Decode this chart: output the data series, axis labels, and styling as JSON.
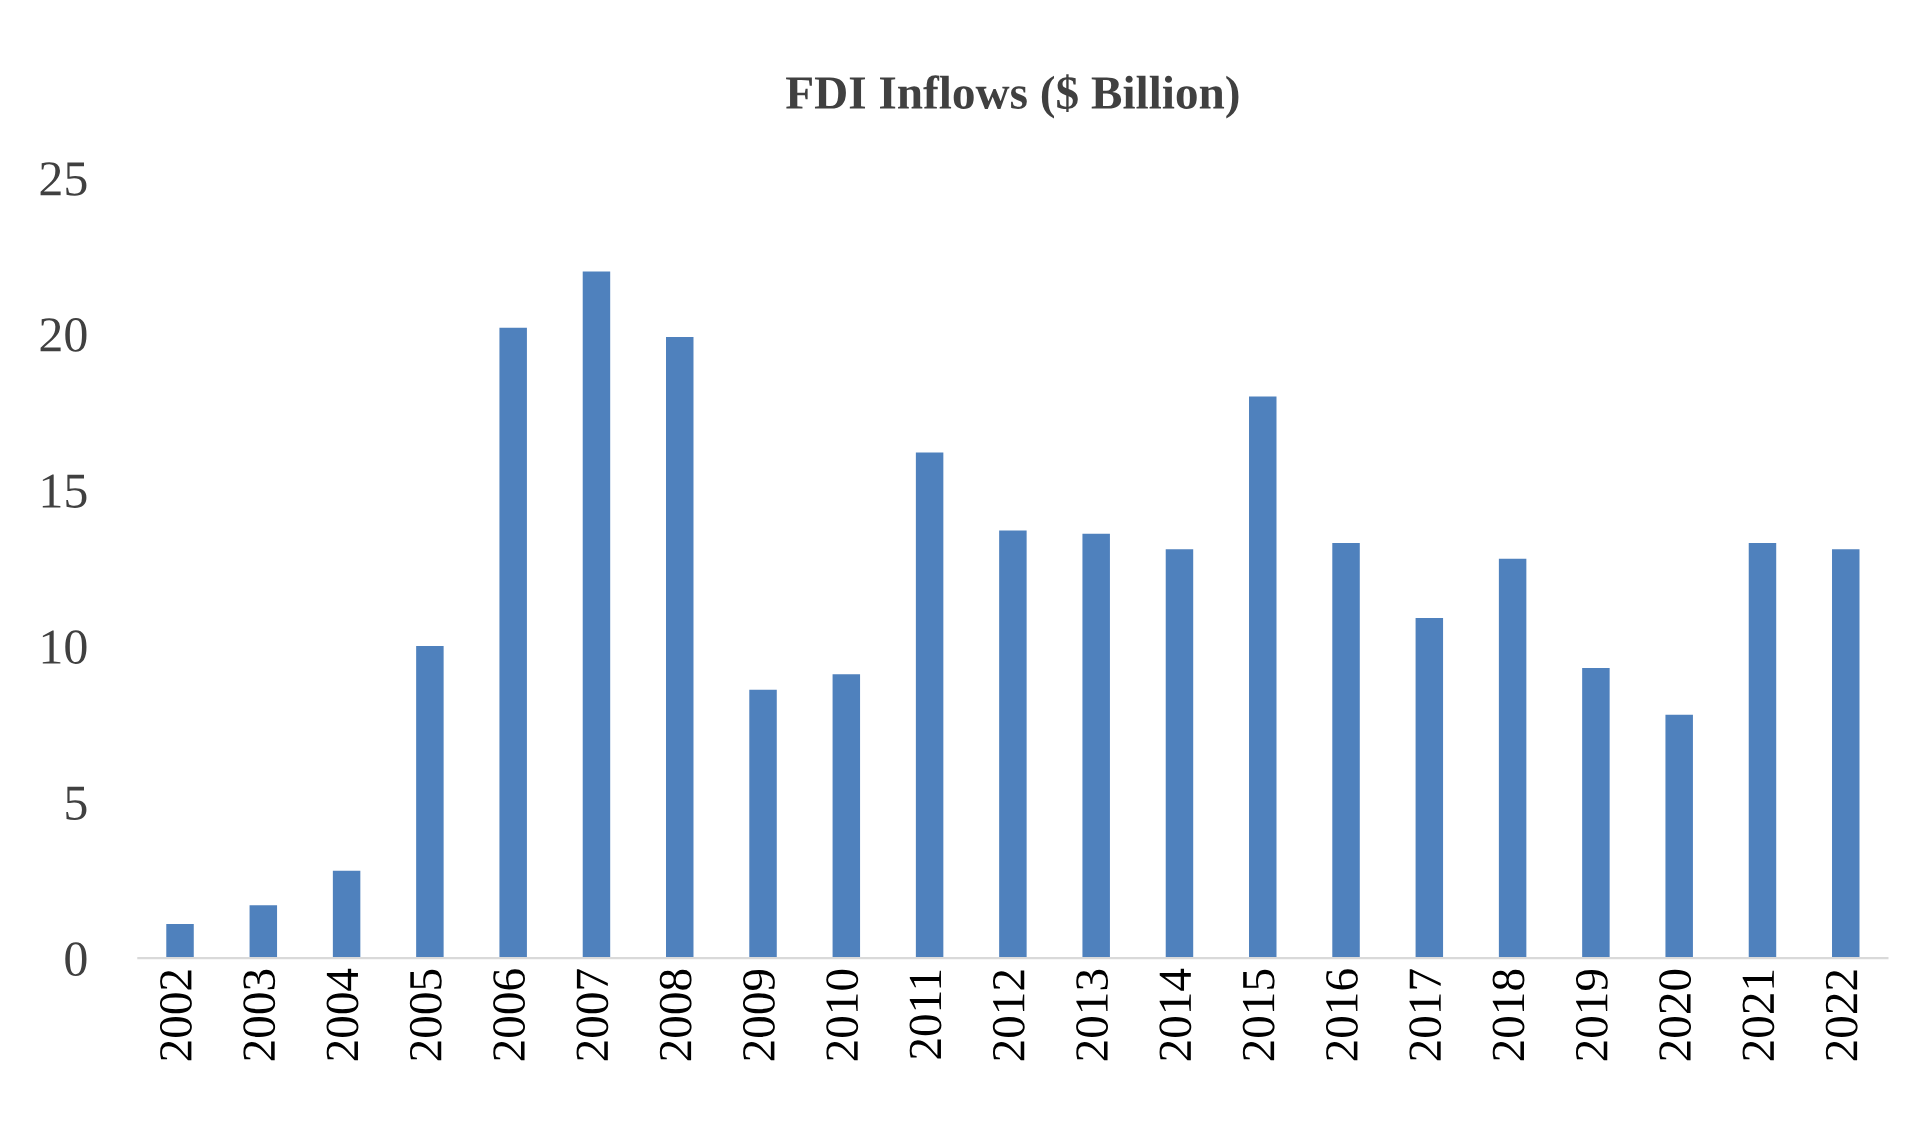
{
  "chart_data": {
    "type": "bar",
    "title": "FDI Inflows ($ Billion)",
    "categories": [
      "2002",
      "2003",
      "2004",
      "2005",
      "2006",
      "2007",
      "2008",
      "2009",
      "2010",
      "2011",
      "2012",
      "2013",
      "2014",
      "2015",
      "2016",
      "2017",
      "2018",
      "2019",
      "2020",
      "2021",
      "2022"
    ],
    "values": [
      1.1,
      1.7,
      2.8,
      10.0,
      20.2,
      22.0,
      19.9,
      8.6,
      9.1,
      16.2,
      13.7,
      13.6,
      13.1,
      18.0,
      13.3,
      10.9,
      12.8,
      9.3,
      7.8,
      13.3,
      13.1
    ],
    "color": "#4f81bd",
    "ylim": [
      0,
      25
    ],
    "yticks": [
      0,
      5,
      10,
      15,
      20,
      25
    ],
    "grid": false,
    "legend": false
  }
}
